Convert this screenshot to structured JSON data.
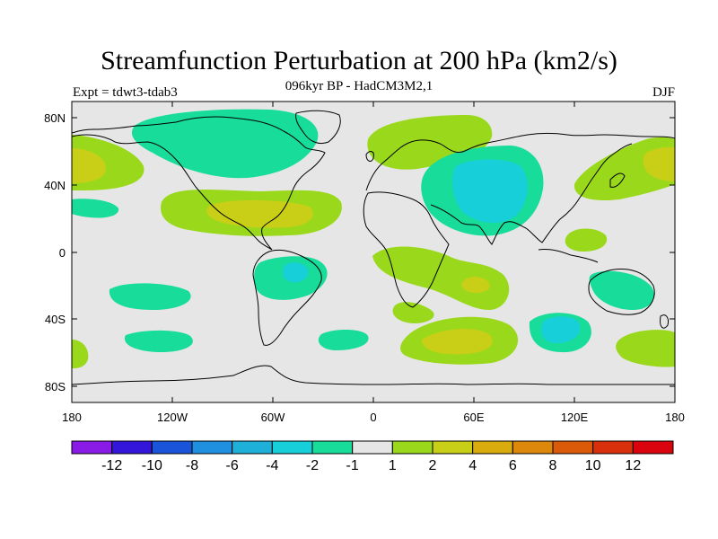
{
  "title": "Streamfunction Perturbation at 200 hPa (km2/s)",
  "subtitle": "096kyr BP - HadCM3M2,1",
  "left_label": "Expt = tdwt3-tdab3",
  "right_label": "DJF",
  "map": {
    "projection": "equirectangular",
    "lon_range": [
      -180,
      180
    ],
    "lat_range": [
      -90,
      90
    ],
    "background_color": "#e6e6e6",
    "y_ticks": [
      "80N",
      "40N",
      "0",
      "40S",
      "80S"
    ],
    "x_ticks": [
      "180",
      "120W",
      "60W",
      "0",
      "60E",
      "120E",
      "180"
    ]
  },
  "colorbar": {
    "colors": [
      "#8a1be6",
      "#3316d9",
      "#1a55d9",
      "#1f8fe0",
      "#1fb0d9",
      "#16cfd9",
      "#17dc9a",
      "#e6e6e6",
      "#9ad81c",
      "#c8cf16",
      "#d9ab0c",
      "#dd880a",
      "#db5a0a",
      "#d9300c",
      "#d9040d"
    ],
    "labels": [
      "-12",
      "-10",
      "-8",
      "-6",
      "-4",
      "-2",
      "-1",
      "1",
      "2",
      "4",
      "6",
      "8",
      "10",
      "12"
    ]
  },
  "anomaly_colors": {
    "pos1": "#9ad81c",
    "pos2": "#c8cf16",
    "neg1": "#17dc9a",
    "neg2": "#16cfd9"
  }
}
